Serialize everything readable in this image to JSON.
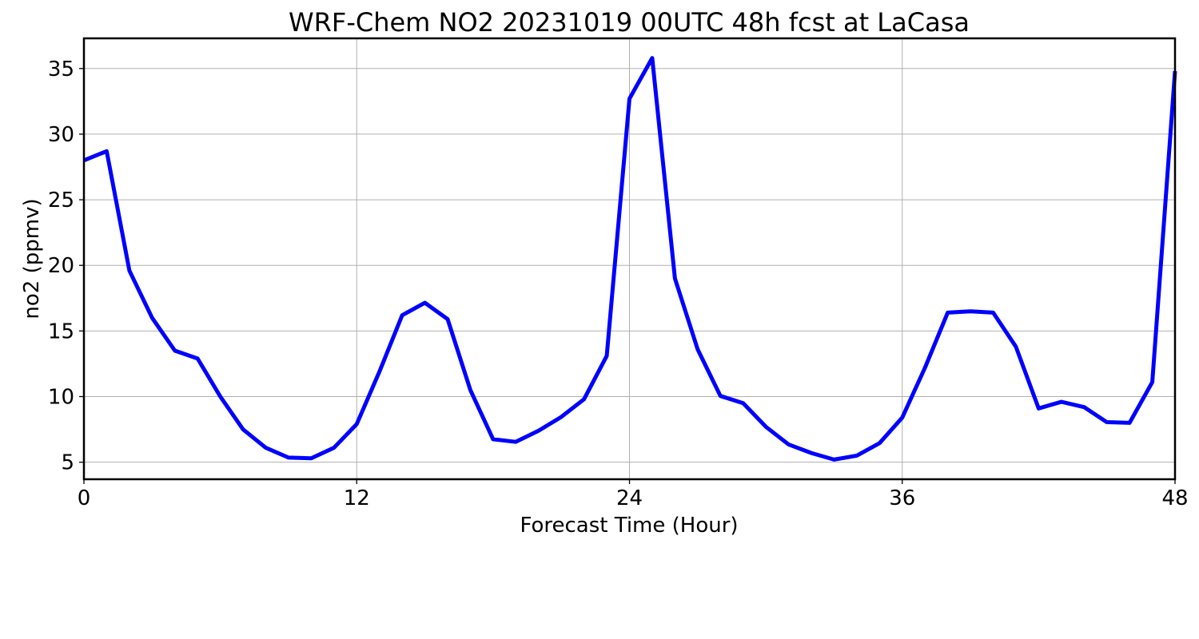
{
  "chart_data": {
    "type": "line",
    "title": "WRF-Chem NO2  20231019 00UTC 48h fcst at LaCasa",
    "xlabel": "Forecast Time (Hour)",
    "ylabel": "no2  (ppmv)",
    "xlim": [
      0,
      48
    ],
    "ylim": [
      3.7,
      37.3
    ],
    "x_ticks": [
      0,
      12,
      24,
      36,
      48
    ],
    "y_ticks": [
      5,
      10,
      15,
      20,
      25,
      30,
      35
    ],
    "grid": true,
    "series": [
      {
        "color": "#0000ff",
        "x": [
          0,
          1,
          2,
          3,
          4,
          5,
          6,
          7,
          8,
          9,
          10,
          11,
          12,
          13,
          14,
          15,
          16,
          17,
          18,
          19,
          20,
          21,
          22,
          23,
          24,
          25,
          26,
          27,
          28,
          29,
          30,
          31,
          32,
          33,
          34,
          35,
          36,
          37,
          38,
          39,
          40,
          41,
          42,
          43,
          44,
          45,
          46,
          47,
          48
        ],
        "values": [
          28.0,
          28.7,
          19.6,
          16.0,
          13.5,
          12.9,
          10.0,
          7.5,
          6.1,
          5.35,
          5.3,
          6.1,
          7.9,
          11.9,
          16.2,
          17.15,
          15.9,
          10.5,
          6.75,
          6.55,
          7.4,
          8.45,
          9.8,
          13.1,
          32.7,
          35.8,
          19.0,
          13.6,
          10.05,
          9.5,
          7.7,
          6.35,
          5.7,
          5.2,
          5.5,
          6.45,
          8.4,
          12.2,
          16.4,
          16.5,
          16.4,
          13.8,
          9.1,
          9.6,
          9.2,
          8.05,
          8.0,
          11.1,
          34.8
        ]
      }
    ]
  }
}
